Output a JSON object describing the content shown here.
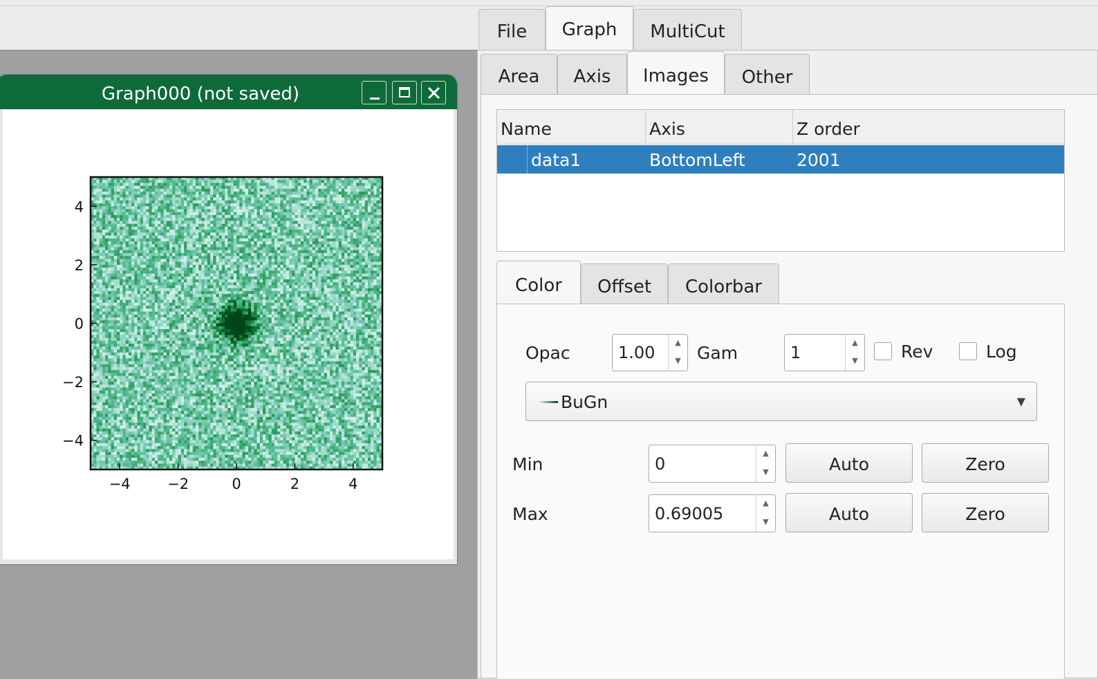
{
  "main_tabs": [
    {
      "label": "File",
      "active": false
    },
    {
      "label": "Graph",
      "active": true
    },
    {
      "label": "MultiCut",
      "active": false
    }
  ],
  "sub_tabs": [
    {
      "label": "Area",
      "active": false
    },
    {
      "label": "Axis",
      "active": false
    },
    {
      "label": "Images",
      "active": true
    },
    {
      "label": "Other",
      "active": false
    }
  ],
  "graph_window": {
    "title": "Graph000 (not saved)",
    "plot": {
      "x_ticks": [
        "−4",
        "−2",
        "0",
        "2",
        "4"
      ],
      "y_ticks": [
        "4",
        "2",
        "0",
        "−2",
        "−4"
      ],
      "xlim": [
        -5,
        5
      ],
      "ylim": [
        -5,
        5
      ],
      "colormap": "BuGn"
    }
  },
  "images_table": {
    "headers": [
      "Name",
      "Axis",
      "Z order"
    ],
    "rows": [
      {
        "name": "data1",
        "axis": "BottomLeft",
        "z_order": "2001",
        "selected": true
      }
    ]
  },
  "inner_tabs": [
    {
      "label": "Color",
      "active": true
    },
    {
      "label": "Offset",
      "active": false
    },
    {
      "label": "Colorbar",
      "active": false
    }
  ],
  "color_panel": {
    "opac_label": "Opac",
    "opac_value": "1.00",
    "gam_label": "Gam",
    "gam_value": "1",
    "rev_label": "Rev",
    "log_label": "Log",
    "colormap": "BuGn",
    "min_label": "Min",
    "min_value": "0",
    "max_label": "Max",
    "max_value": "0.69005",
    "auto_label": "Auto",
    "zero_label": "Zero"
  },
  "colors": {
    "title_bar": "#0f6a3a",
    "selection": "#2f7fbf",
    "colormap_dark": "#00441b",
    "colormap_light": "#e5f5f9"
  }
}
